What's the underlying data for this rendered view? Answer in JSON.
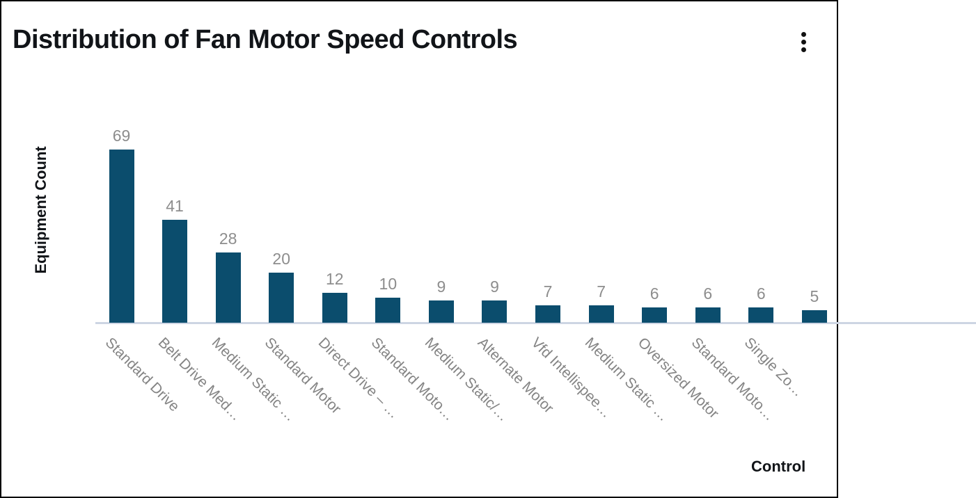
{
  "card": {
    "title": "Distribution of Fan Motor Speed Controls",
    "menu_icon": "kebab-menu-icon"
  },
  "chart_data": {
    "type": "bar",
    "title": "Distribution of Fan Motor Speed Controls",
    "xlabel": "Control",
    "ylabel": "Equipment Count",
    "categories": [
      "Standard Drive",
      "Belt Drive Med…",
      "Medium Static …",
      "Standard Motor",
      "Direct Drive – …",
      "Standard Moto…",
      "Medium Static/…",
      "Alternate Motor",
      "Vfd Intellispee…",
      "Medium Static …",
      "Oversized Motor",
      "Standard Moto…",
      "Single Zo…",
      ""
    ],
    "values": [
      69,
      41,
      28,
      20,
      12,
      10,
      9,
      9,
      7,
      7,
      6,
      6,
      6,
      5
    ],
    "ylim": [
      0,
      69
    ],
    "grid": false,
    "legend": false,
    "bar_color": "#0B4D6D",
    "value_label_color": "#8D8D8D",
    "tick_label_color": "#848484",
    "axis_line_color": "#CDD5E3",
    "title_color": "#111418",
    "clipped_right_edge": true
  }
}
